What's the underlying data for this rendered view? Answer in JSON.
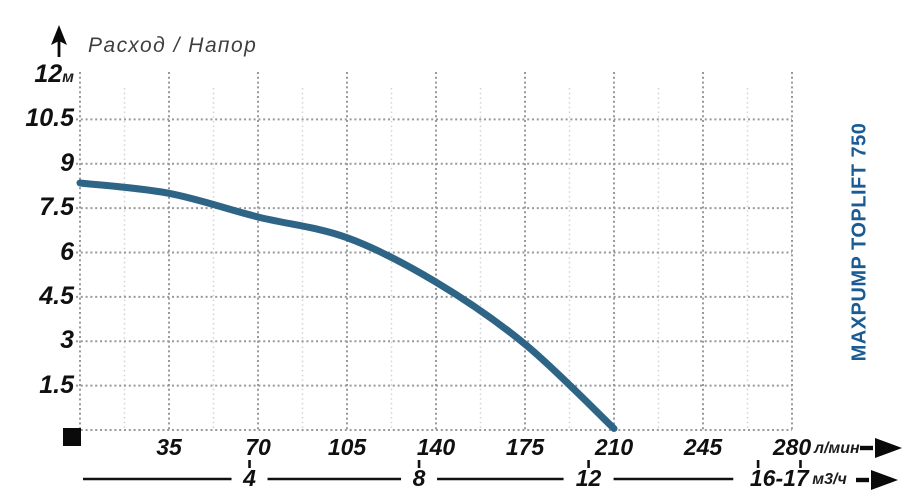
{
  "title": "Расход / Напор",
  "brand": "MAXPUMP TOPLIFT 750",
  "chart_data": {
    "type": "line",
    "title": "Расход / Напор",
    "x": [
      0,
      35,
      70,
      105,
      140,
      175,
      210
    ],
    "series": [
      {
        "name": "MAXPUMP TOPLIFT 750",
        "values": [
          8.35,
          8.0,
          7.2,
          6.5,
          5.0,
          2.9,
          0.05
        ]
      }
    ],
    "xlabel": "л/мин",
    "ylabel": "м",
    "x2label": "м3/ч",
    "xlim": [
      0,
      280
    ],
    "ylim": [
      0,
      12
    ],
    "x_ticks": [
      35,
      70,
      105,
      140,
      175,
      210,
      245,
      280
    ],
    "y_ticks": [
      12,
      10.5,
      9,
      7.5,
      6,
      4.5,
      3,
      1.5
    ],
    "x2_ticks": [
      {
        "label": "4",
        "m3h": [
          4
        ]
      },
      {
        "label": "8",
        "m3h": [
          8
        ]
      },
      {
        "label": "12",
        "m3h": [
          12
        ]
      },
      {
        "label": "16-17",
        "m3h": [
          16,
          17
        ]
      }
    ],
    "grid": "dotted",
    "legend_position": "none"
  },
  "colors": {
    "curve": "#2e6587",
    "brand": "#1b5b94",
    "grid_major": "#97999c",
    "grid_minor": "#cfd3d8",
    "axis_black": "#111111",
    "text": "#101010"
  }
}
